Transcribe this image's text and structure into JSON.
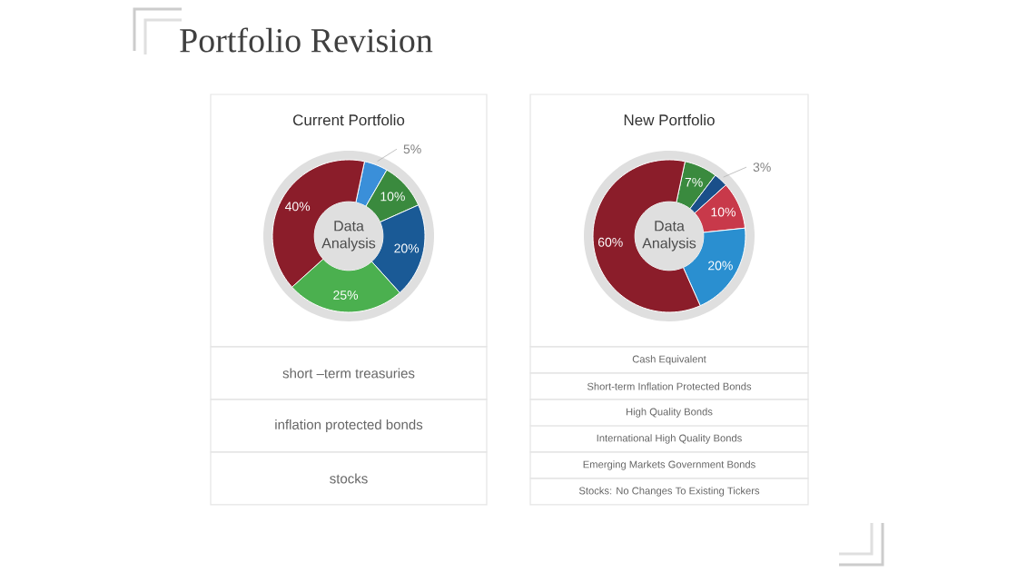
{
  "chart_data": [
    {
      "type": "other",
      "title": "Portfolio Revision"
    },
    {
      "type": "donut",
      "title": "Current Portfolio",
      "categories": [
        null,
        null,
        null,
        null,
        null
      ],
      "values": [
        5,
        10,
        20,
        25,
        40
      ],
      "colors": [
        "#3a8fd9",
        "#3a8a3e",
        "#1a5a96",
        "#4bb04f",
        "#8b1d2a"
      ],
      "value_labels": [
        "5%",
        "10%",
        "20%",
        "25%",
        "40%"
      ],
      "annotations": [
        "Data Analysis",
        "short –term treasuries",
        "inflation protected bonds",
        "stocks"
      ]
    },
    {
      "type": "donut",
      "title": "New Portfolio",
      "categories": [
        null,
        null,
        null,
        null,
        null
      ],
      "values": [
        7,
        3,
        10,
        20,
        60
      ],
      "colors": [
        "#3a8a3e",
        "#1a4f8a",
        "#c8394a",
        "#2a8fd0",
        "#8b1d2a"
      ],
      "value_labels": [
        "7%",
        "3%",
        "10%",
        "20%",
        "60%"
      ],
      "annotations": [
        "Data Analysis",
        "Cash Equivalent",
        "Short-term Inflation Protected Bonds",
        "High Quality Bonds",
        "International High Quality Bonds",
        "Emerging Markets Government Bonds",
        "Stocks: No Changes To Existing Tickers"
      ]
    }
  ]
}
